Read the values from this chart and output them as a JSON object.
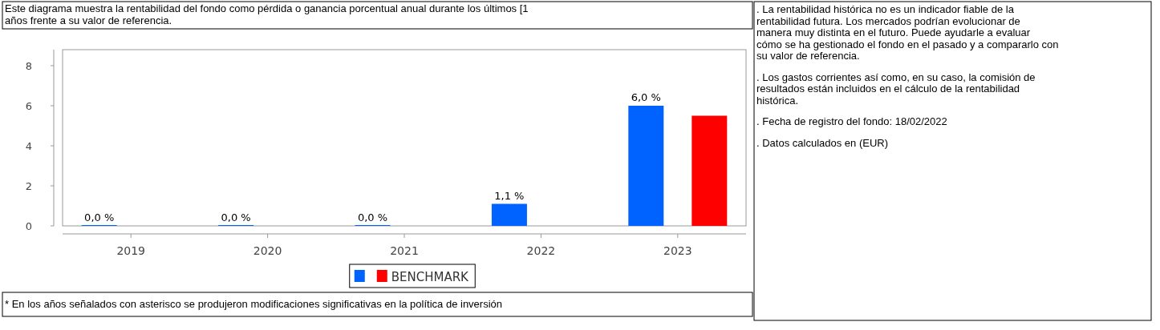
{
  "chart_data": {
    "type": "bar",
    "title": "Este diagrama muestra la rentabilidad del fondo como pérdida o ganancia porcentual anual durante los últimos [1\naños frente a su valor de referencia.",
    "categories": [
      "2019",
      "2020",
      "2021",
      "2022",
      "2023"
    ],
    "series": [
      {
        "color": "#0062ff",
        "values": [
          0,
          0,
          0,
          1.1,
          6.0
        ],
        "value_labels": [
          "0,0 %",
          "0,0 %",
          "0,0 %",
          "1,1 %",
          "6,0 %"
        ]
      },
      {
        "name": "BENCHMARK",
        "color": "#ff0000",
        "values": [
          null,
          null,
          null,
          null,
          5.5
        ]
      }
    ],
    "ylim": [
      0,
      8.8
    ],
    "yticks": [
      0,
      2,
      4,
      6,
      8
    ],
    "grid": false,
    "legend": "bottom",
    "annotations": [
      ". La rentabilidad histórica no es un indicador fiable de la rentabilidad futura. Los mercados podrían evolucionar de manera muy distinta en el futuro. Puede ayudarle a evaluar cómo se ha gestionado el fondo en el pasado y a compararlo con su valor de referencia.",
      ". Los gastos corrientes así como, en su caso, la comisión de resultados están incluidos en el cálculo de la rentabilidad histórica.",
      ". Fecha de registro del fondo: 18/02/2022",
      ". Datos calculados en (EUR)",
      "* En los años señalados con asterisco se produjeron modificaciones significativas en la política de inversión"
    ]
  }
}
